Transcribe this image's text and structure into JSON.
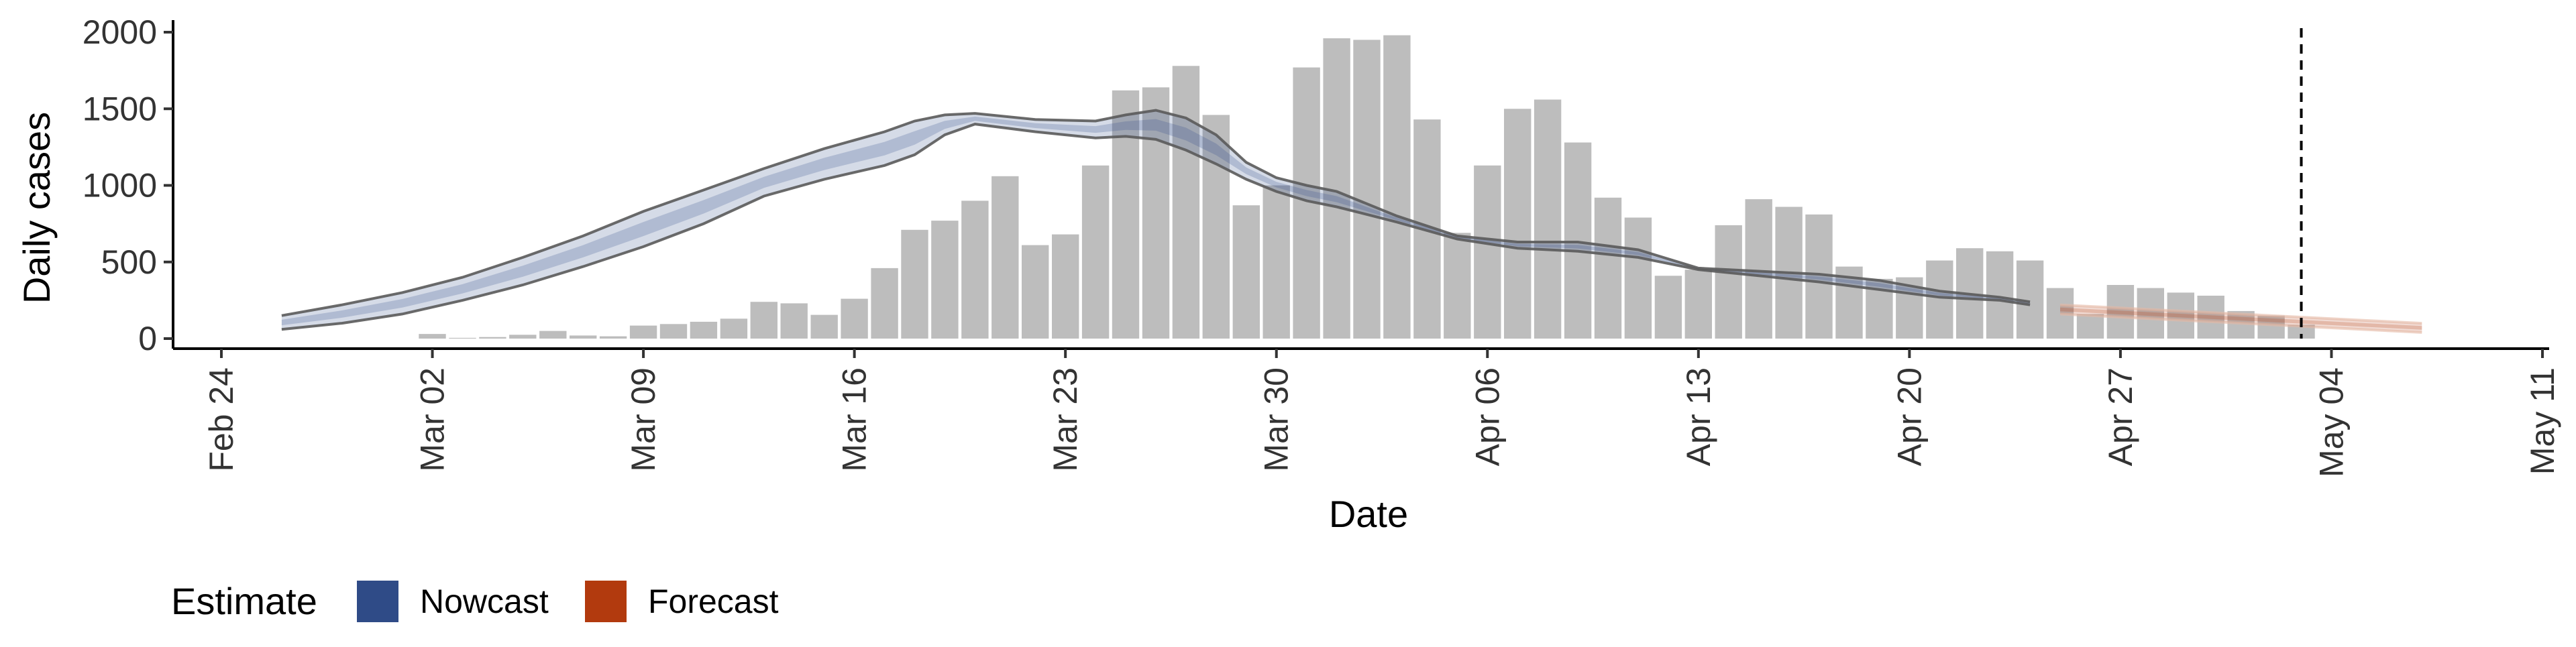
{
  "chart_data": {
    "type": "bar",
    "xlabel": "Date",
    "ylabel": "Daily cases",
    "ylim": [
      0,
      2000
    ],
    "y_ticks": [
      "0",
      "500",
      "1000",
      "1500",
      "2000"
    ],
    "x_range": [
      "2020-02-24",
      "2020-05-11"
    ],
    "x_ticks": [
      {
        "date": "2020-02-24",
        "label": "Feb 24"
      },
      {
        "date": "2020-03-02",
        "label": "Mar 02"
      },
      {
        "date": "2020-03-09",
        "label": "Mar 09"
      },
      {
        "date": "2020-03-16",
        "label": "Mar 16"
      },
      {
        "date": "2020-03-23",
        "label": "Mar 23"
      },
      {
        "date": "2020-03-30",
        "label": "Mar 30"
      },
      {
        "date": "2020-04-06",
        "label": "Apr 06"
      },
      {
        "date": "2020-04-13",
        "label": "Apr 13"
      },
      {
        "date": "2020-04-20",
        "label": "Apr 20"
      },
      {
        "date": "2020-04-27",
        "label": "Apr 27"
      },
      {
        "date": "2020-05-04",
        "label": "May 04"
      },
      {
        "date": "2020-05-11",
        "label": "May 11"
      }
    ],
    "grid": false,
    "bar_color": "#bdbdbd",
    "reported_cases": {
      "dates": [
        "2020-03-02",
        "2020-03-03",
        "2020-03-04",
        "2020-03-05",
        "2020-03-06",
        "2020-03-07",
        "2020-03-08",
        "2020-03-09",
        "2020-03-10",
        "2020-03-11",
        "2020-03-12",
        "2020-03-13",
        "2020-03-14",
        "2020-03-15",
        "2020-03-16",
        "2020-03-17",
        "2020-03-18",
        "2020-03-19",
        "2020-03-20",
        "2020-03-21",
        "2020-03-22",
        "2020-03-23",
        "2020-03-24",
        "2020-03-25",
        "2020-03-26",
        "2020-03-27",
        "2020-03-28",
        "2020-03-29",
        "2020-03-30",
        "2020-03-31",
        "2020-04-01",
        "2020-04-02",
        "2020-04-03",
        "2020-04-04",
        "2020-04-05",
        "2020-04-06",
        "2020-04-07",
        "2020-04-08",
        "2020-04-09",
        "2020-04-10",
        "2020-04-11",
        "2020-04-12",
        "2020-04-13",
        "2020-04-14",
        "2020-04-15",
        "2020-04-16",
        "2020-04-17",
        "2020-04-18",
        "2020-04-19",
        "2020-04-20",
        "2020-04-21",
        "2020-04-22",
        "2020-04-23",
        "2020-04-24",
        "2020-04-25",
        "2020-04-26",
        "2020-04-27",
        "2020-04-28",
        "2020-04-29",
        "2020-04-30",
        "2020-05-01",
        "2020-05-02",
        "2020-05-03"
      ],
      "values": [
        30,
        5,
        10,
        25,
        50,
        20,
        15,
        85,
        95,
        110,
        130,
        240,
        230,
        155,
        260,
        460,
        710,
        770,
        900,
        1060,
        610,
        680,
        1130,
        1620,
        1640,
        1780,
        1460,
        870,
        1000,
        1770,
        1960,
        1950,
        1980,
        1430,
        690,
        1130,
        1500,
        1560,
        1280,
        920,
        790,
        410,
        450,
        740,
        910,
        860,
        810,
        470,
        390,
        400,
        510,
        590,
        570,
        510,
        330,
        160,
        350,
        330,
        300,
        280,
        180,
        150,
        90
      ]
    },
    "series": [
      {
        "name": "Nowcast",
        "color": "#2f4b87",
        "dates": [
          "2020-02-26",
          "2020-02-28",
          "2020-03-01",
          "2020-03-03",
          "2020-03-05",
          "2020-03-07",
          "2020-03-09",
          "2020-03-11",
          "2020-03-13",
          "2020-03-15",
          "2020-03-17",
          "2020-03-18",
          "2020-03-19",
          "2020-03-20",
          "2020-03-22",
          "2020-03-24",
          "2020-03-25",
          "2020-03-26",
          "2020-03-27",
          "2020-03-28",
          "2020-03-29",
          "2020-03-30",
          "2020-03-31",
          "2020-04-01",
          "2020-04-03",
          "2020-04-05",
          "2020-04-07",
          "2020-04-09",
          "2020-04-11",
          "2020-04-13",
          "2020-04-15",
          "2020-04-17",
          "2020-04-19",
          "2020-04-21",
          "2020-04-23",
          "2020-04-24"
        ],
        "lower": [
          60,
          100,
          160,
          250,
          350,
          470,
          600,
          750,
          930,
          1040,
          1130,
          1200,
          1330,
          1400,
          1350,
          1310,
          1320,
          1300,
          1230,
          1140,
          1040,
          960,
          900,
          860,
          760,
          650,
          590,
          570,
          530,
          450,
          410,
          370,
          320,
          270,
          250,
          220
        ],
        "upper": [
          150,
          220,
          300,
          400,
          530,
          670,
          830,
          970,
          1110,
          1240,
          1350,
          1420,
          1460,
          1470,
          1430,
          1420,
          1460,
          1490,
          1440,
          1330,
          1150,
          1050,
          1000,
          960,
          800,
          670,
          630,
          630,
          580,
          460,
          440,
          420,
          380,
          310,
          270,
          240
        ]
      },
      {
        "name": "Forecast",
        "color": "#b23a0e",
        "dates": [
          "2020-04-25",
          "2020-04-27",
          "2020-04-29",
          "2020-05-01",
          "2020-05-03",
          "2020-05-05",
          "2020-05-07"
        ],
        "lower": [
          160,
          140,
          120,
          100,
          80,
          60,
          40
        ],
        "upper": [
          220,
          200,
          180,
          160,
          140,
          120,
          100
        ]
      }
    ],
    "annotations": [
      {
        "type": "vline",
        "date": "2020-05-03",
        "style": "dashed",
        "color": "#000000"
      }
    ],
    "legend": {
      "title": "Estimate",
      "placement": "bottom-left",
      "items": [
        {
          "label": "Nowcast",
          "color": "#2f4b87"
        },
        {
          "label": "Forecast",
          "color": "#b23a0e"
        }
      ]
    }
  }
}
